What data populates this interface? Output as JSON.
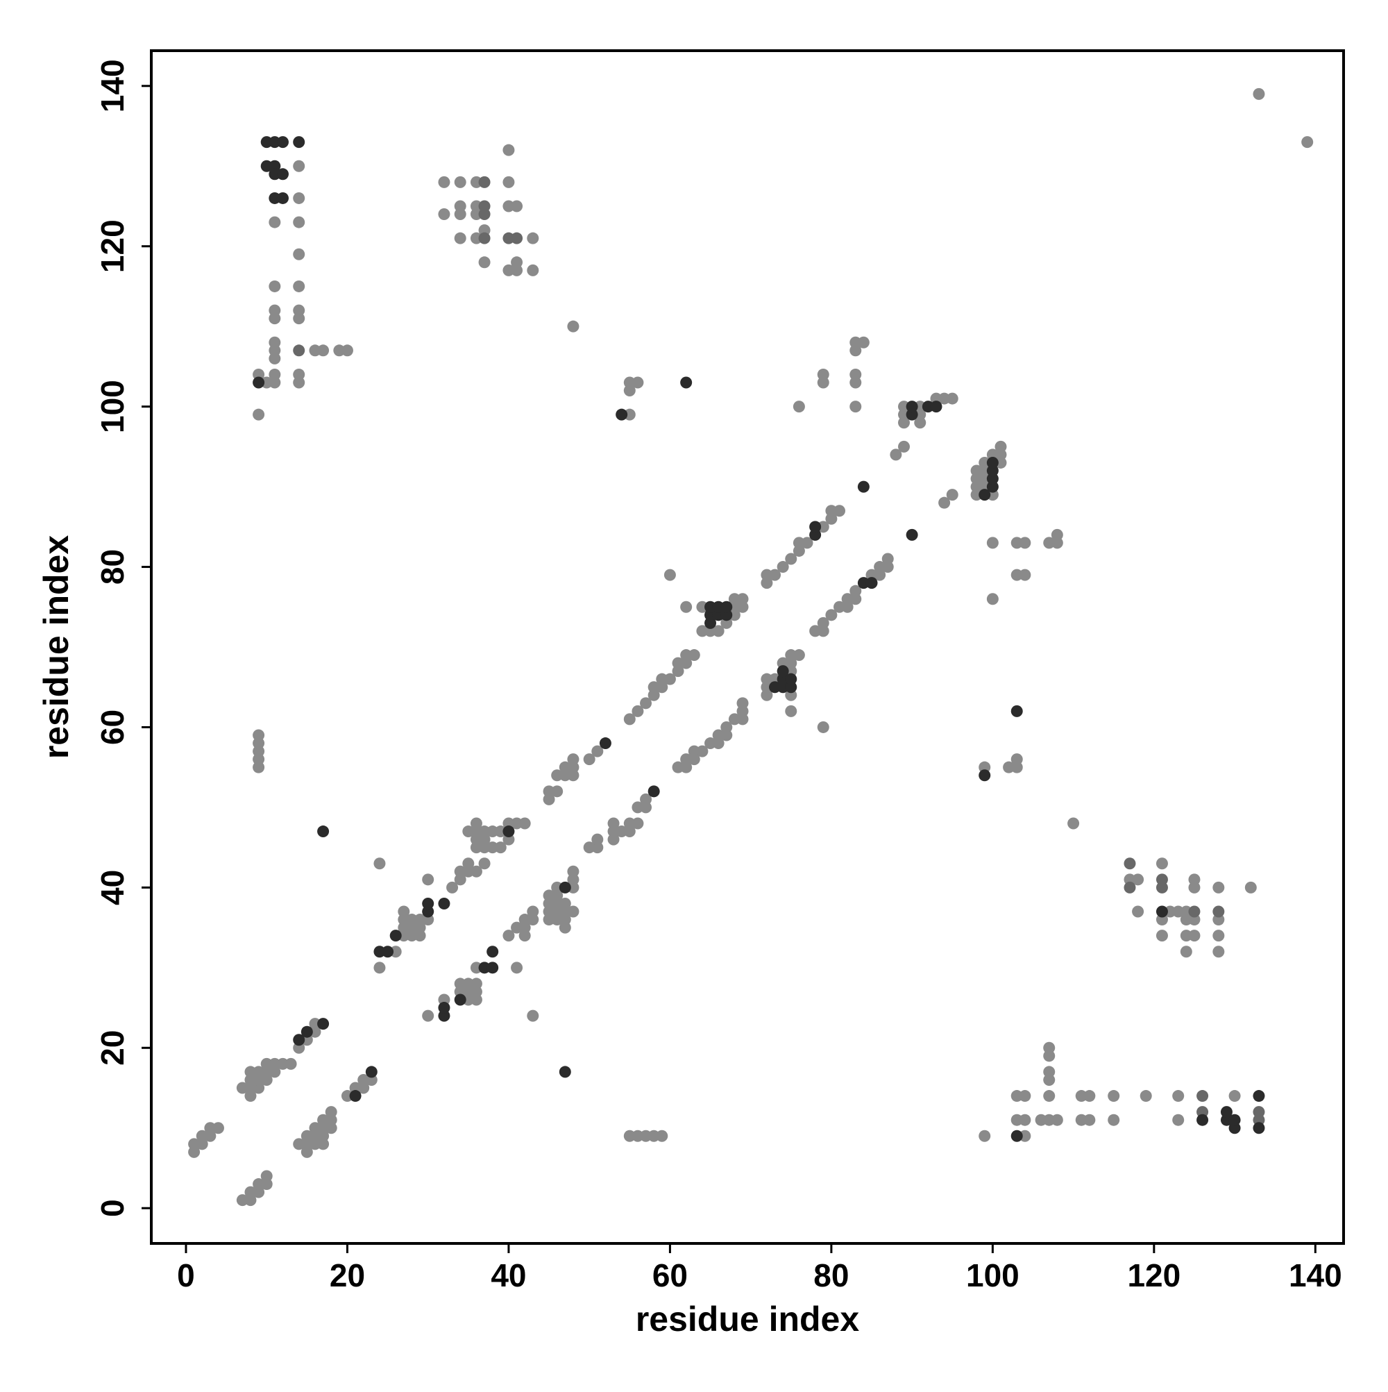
{
  "chart_data": {
    "type": "scatter",
    "xlabel": "residue index",
    "ylabel": "residue index",
    "xlim": [
      -4.3,
      143.5
    ],
    "ylim": [
      -4.4,
      144.4
    ],
    "xticks": [
      0,
      20,
      40,
      60,
      80,
      100,
      120,
      140
    ],
    "yticks": [
      0,
      20,
      40,
      60,
      80,
      100,
      120,
      140
    ],
    "series": [
      {
        "color": "#8a8a8a",
        "x": [
          1,
          1,
          2,
          2,
          3,
          3,
          4,
          7,
          8,
          8,
          8,
          8,
          9,
          9,
          9,
          10,
          10,
          10,
          11,
          11,
          12,
          13,
          14,
          15,
          16,
          16,
          24,
          26,
          27,
          27,
          27,
          27,
          28,
          28,
          28,
          29,
          29,
          29,
          30,
          30,
          33,
          34,
          34,
          35,
          35,
          35,
          36,
          36,
          36,
          36,
          36,
          37,
          37,
          37,
          37,
          38,
          38,
          39,
          39,
          40,
          40,
          41,
          42,
          45,
          45,
          46,
          46,
          47,
          47,
          48,
          48,
          48,
          50,
          51,
          55,
          56,
          57,
          58,
          58,
          59,
          59,
          60,
          61,
          61,
          62,
          62,
          63,
          62,
          60,
          64,
          64,
          65,
          66,
          67,
          68,
          68,
          68,
          69,
          69,
          72,
          72,
          73,
          74,
          75,
          76,
          76,
          77,
          79,
          80,
          80,
          81,
          88,
          89,
          89,
          89,
          89,
          91,
          91,
          91,
          94,
          95,
          93,
          98,
          98,
          98,
          98,
          99,
          99,
          99,
          99,
          100,
          100,
          101,
          101,
          101,
          76,
          79,
          79,
          83,
          83,
          83,
          83,
          83,
          84,
          55,
          55,
          55,
          56,
          48,
          7,
          8,
          8,
          9,
          9,
          10,
          10,
          14,
          15,
          15,
          15,
          16,
          16,
          16,
          17,
          17,
          17,
          17,
          18,
          18,
          18,
          20,
          21,
          22,
          22,
          23,
          24,
          30,
          32,
          34,
          34,
          35,
          35,
          35,
          36,
          36,
          36,
          36,
          40,
          41,
          41,
          42,
          42,
          42,
          43,
          43,
          43,
          45,
          45,
          45,
          45,
          46,
          46,
          46,
          46,
          46,
          47,
          47,
          47,
          47,
          48,
          48,
          48,
          48,
          50,
          51,
          51,
          53,
          53,
          53,
          54,
          55,
          55,
          56,
          56,
          57,
          57,
          61,
          62,
          62,
          63,
          63,
          64,
          65,
          66,
          66,
          67,
          67,
          68,
          69,
          69,
          69,
          72,
          72,
          72,
          73,
          74,
          75,
          75,
          75,
          75,
          75,
          76,
          79,
          78,
          79,
          79,
          80,
          81,
          82,
          82,
          83,
          83,
          85,
          86,
          86,
          87,
          87,
          94,
          95,
          100,
          100,
          103,
          104,
          103,
          104,
          107,
          108,
          108,
          99,
          102,
          103,
          103,
          110,
          9,
          9,
          9,
          9,
          9,
          14,
          14,
          11,
          14,
          14,
          11,
          14,
          11,
          11,
          14,
          14,
          11,
          11,
          11,
          16,
          17,
          19,
          20,
          9,
          11,
          14,
          10,
          11,
          14,
          9,
          32,
          34,
          36,
          40,
          32,
          34,
          34,
          36,
          36,
          40,
          41,
          37,
          34,
          36,
          43,
          37,
          41,
          40,
          41,
          43,
          40,
          99,
          103,
          104,
          103,
          104,
          104,
          106,
          107,
          108,
          107,
          107,
          107,
          107,
          107,
          111,
          112,
          111,
          112,
          115,
          115,
          119,
          123,
          123,
          130,
          55,
          56,
          57,
          58,
          59,
          117,
          118,
          118,
          121,
          121,
          121,
          122,
          123,
          124,
          124,
          124,
          124,
          125,
          125,
          125,
          125,
          128,
          128,
          128,
          128,
          132,
          133,
          139
        ],
        "values": [
          7,
          8,
          8,
          9,
          9,
          10,
          10,
          15,
          14,
          15,
          16,
          17,
          15,
          16,
          17,
          16,
          17,
          18,
          17,
          18,
          18,
          18,
          20,
          21,
          22,
          23,
          30,
          32,
          34,
          35,
          36,
          37,
          34,
          35,
          36,
          34,
          35,
          36,
          36,
          41,
          40,
          41,
          42,
          42,
          43,
          47,
          42,
          45,
          46,
          47,
          48,
          43,
          45,
          46,
          47,
          45,
          47,
          45,
          47,
          46,
          48,
          48,
          48,
          51,
          52,
          52,
          54,
          54,
          55,
          54,
          55,
          56,
          56,
          57,
          61,
          62,
          63,
          64,
          65,
          65,
          66,
          66,
          67,
          68,
          68,
          69,
          69,
          75,
          79,
          72,
          75,
          72,
          72,
          73,
          74,
          75,
          76,
          75,
          76,
          78,
          79,
          79,
          80,
          81,
          82,
          83,
          83,
          85,
          86,
          87,
          87,
          94,
          95,
          98,
          99,
          100,
          98,
          99,
          100,
          101,
          101,
          101,
          89,
          90,
          91,
          92,
          90,
          91,
          92,
          93,
          89,
          94,
          93,
          94,
          95,
          100,
          103,
          104,
          100,
          103,
          104,
          107,
          108,
          108,
          99,
          102,
          103,
          103,
          110,
          1,
          1,
          2,
          2,
          3,
          3,
          4,
          8,
          7,
          8,
          9,
          8,
          9,
          10,
          8,
          9,
          10,
          11,
          10,
          11,
          12,
          14,
          15,
          15,
          16,
          16,
          43,
          24,
          26,
          27,
          28,
          26,
          27,
          28,
          26,
          27,
          28,
          30,
          34,
          30,
          35,
          34,
          35,
          36,
          24,
          36,
          37,
          36,
          37,
          38,
          39,
          36,
          37,
          38,
          39,
          40,
          35,
          36,
          37,
          38,
          37,
          40,
          41,
          42,
          45,
          45,
          46,
          46,
          47,
          48,
          47,
          47,
          48,
          48,
          50,
          50,
          51,
          55,
          55,
          56,
          56,
          57,
          57,
          58,
          58,
          59,
          59,
          60,
          61,
          61,
          62,
          63,
          64,
          65,
          66,
          66,
          68,
          62,
          64,
          67,
          68,
          69,
          69,
          60,
          72,
          72,
          73,
          74,
          75,
          75,
          76,
          76,
          77,
          79,
          79,
          80,
          80,
          81,
          88,
          89,
          76,
          83,
          79,
          79,
          83,
          83,
          83,
          83,
          84,
          55,
          55,
          55,
          56,
          48,
          55,
          56,
          57,
          58,
          59,
          130,
          126,
          123,
          123,
          119,
          115,
          115,
          112,
          111,
          112,
          111,
          108,
          107,
          106,
          107,
          107,
          107,
          107,
          104,
          104,
          104,
          103,
          103,
          103,
          99,
          128,
          128,
          128,
          128,
          124,
          125,
          124,
          125,
          124,
          125,
          125,
          122,
          121,
          121,
          121,
          118,
          118,
          117,
          117,
          117,
          132,
          9,
          11,
          11,
          14,
          14,
          9,
          11,
          11,
          11,
          14,
          16,
          17,
          19,
          20,
          11,
          11,
          14,
          14,
          11,
          14,
          14,
          11,
          14,
          14,
          9,
          9,
          9,
          9,
          9,
          41,
          41,
          37,
          43,
          36,
          34,
          37,
          37,
          37,
          36,
          34,
          32,
          36,
          34,
          40,
          41,
          40,
          36,
          34,
          32,
          40,
          139,
          133
        ]
      },
      {
        "color": "#686868",
        "x": [
          37,
          37,
          37,
          37,
          40,
          41,
          14,
          126,
          126,
          133,
          133,
          117,
          117,
          121,
          121,
          125,
          128
        ],
        "values": [
          128,
          125,
          124,
          121,
          121,
          121,
          107,
          12,
          14,
          11,
          12,
          43,
          40,
          41,
          40,
          37,
          37
        ]
      },
      {
        "color": "#2b2b2b",
        "x": [
          14,
          15,
          17,
          24,
          25,
          26,
          30,
          30,
          32,
          40,
          52,
          65,
          65,
          65,
          66,
          66,
          67,
          67,
          78,
          78,
          84,
          90,
          90,
          92,
          93,
          99,
          100,
          100,
          100,
          100,
          54,
          62,
          21,
          23,
          32,
          32,
          34,
          37,
          38,
          38,
          47,
          47,
          58,
          73,
          74,
          74,
          74,
          75,
          75,
          84,
          85,
          90,
          99,
          103,
          10,
          11,
          12,
          14,
          10,
          11,
          11,
          12,
          11,
          12,
          9,
          103,
          126,
          129,
          129,
          130,
          130,
          133,
          133,
          121,
          17
        ],
        "values": [
          21,
          22,
          23,
          32,
          32,
          34,
          37,
          38,
          38,
          47,
          58,
          73,
          74,
          75,
          74,
          75,
          74,
          75,
          84,
          85,
          90,
          99,
          100,
          100,
          100,
          89,
          90,
          91,
          92,
          93,
          99,
          103,
          14,
          17,
          24,
          25,
          26,
          30,
          30,
          32,
          40,
          17,
          52,
          65,
          65,
          66,
          67,
          65,
          66,
          78,
          78,
          84,
          54,
          62,
          133,
          133,
          133,
          133,
          130,
          130,
          129,
          129,
          126,
          126,
          103,
          9,
          11,
          11,
          12,
          10,
          11,
          10,
          14,
          37,
          47
        ]
      }
    ]
  }
}
